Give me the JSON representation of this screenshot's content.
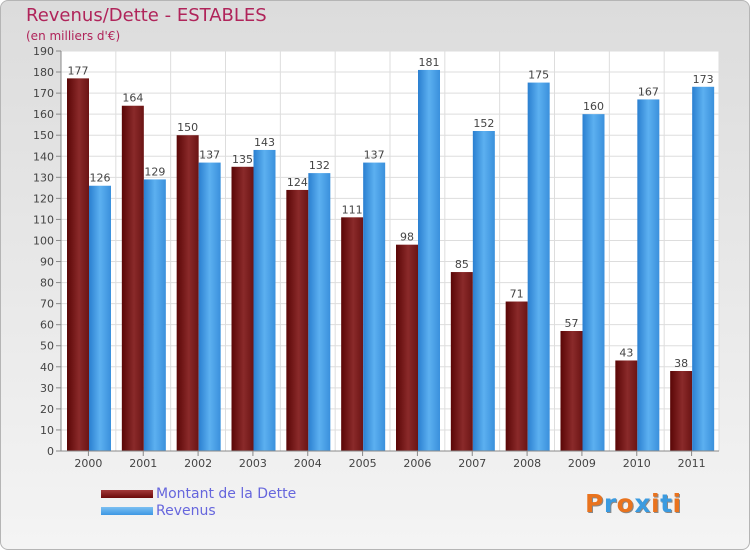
{
  "header": {
    "title": "Revenus/Dette - ESTABLES",
    "subtitle": "(en milliers d'€)"
  },
  "chart_data": {
    "type": "bar",
    "title": "Revenus/Dette - ESTABLES",
    "subtitle": "(en milliers d'€)",
    "categories": [
      "2000",
      "2001",
      "2002",
      "2003",
      "2004",
      "2005",
      "2006",
      "2007",
      "2008",
      "2009",
      "2010",
      "2011"
    ],
    "series": [
      {
        "name": "Montant de la Dette",
        "color": "#6b0a0a",
        "values": [
          177,
          164,
          150,
          135,
          124,
          111,
          98,
          85,
          71,
          57,
          43,
          38
        ]
      },
      {
        "name": "Revenus",
        "color": "#3d97e3",
        "values": [
          126,
          129,
          137,
          143,
          132,
          137,
          181,
          152,
          175,
          160,
          167,
          173
        ]
      }
    ],
    "ylim": [
      0,
      190
    ],
    "ytick_step": 10,
    "grid": true,
    "legend_position": "bottom-left"
  },
  "legend": {
    "items": [
      {
        "label": "Montant de la Dette",
        "color": "#6b0a0a"
      },
      {
        "label": "Revenus",
        "color": "#3d97e3"
      }
    ]
  },
  "logo": {
    "text": "Proxiti",
    "colors": [
      "#e9731e",
      "#3b9be0",
      "#e9731e",
      "#3b9be0",
      "#e9731e",
      "#3b9be0",
      "#e9731e"
    ]
  }
}
